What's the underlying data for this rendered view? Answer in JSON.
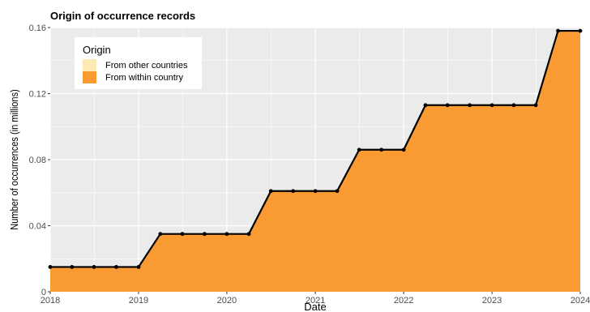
{
  "chart_data": {
    "type": "area",
    "title": "Origin of occurrence records",
    "xlabel": "Date",
    "ylabel": "Number of occurrences (in millions)",
    "xlim": [
      "2018-01-01",
      "2024-01-01"
    ],
    "ylim": [
      0,
      0.16
    ],
    "x_ticks": [
      "2018",
      "2019",
      "2020",
      "2021",
      "2022",
      "2023",
      "2024"
    ],
    "y_ticks": [
      "0",
      "0.04",
      "0.08",
      "0.12",
      "0.16"
    ],
    "y_tick_values": [
      0,
      0.04,
      0.08,
      0.12,
      0.16
    ],
    "grid": true,
    "legend": {
      "title": "Origin",
      "placement": "top-left",
      "entries": [
        {
          "name": "From other countries",
          "color": "#FDE9B3"
        },
        {
          "name": "From within country",
          "color": "#FA9A32"
        }
      ]
    },
    "x": [
      "2018-01-01",
      "2018-04-01",
      "2018-07-01",
      "2018-10-01",
      "2019-01-01",
      "2019-04-01",
      "2019-07-01",
      "2019-10-01",
      "2020-01-01",
      "2020-04-01",
      "2020-07-01",
      "2020-10-01",
      "2021-01-01",
      "2021-04-01",
      "2021-07-01",
      "2021-10-01",
      "2022-01-01",
      "2022-04-01",
      "2022-07-01",
      "2022-10-01",
      "2023-01-01",
      "2023-04-01",
      "2023-07-01",
      "2023-10-01",
      "2024-01-01"
    ],
    "series": [
      {
        "name": "From other countries",
        "color": "#FDE9B3",
        "values": [
          0,
          0,
          0,
          0,
          0,
          0,
          0,
          0,
          0,
          0,
          0,
          0,
          0,
          0,
          0,
          0,
          0,
          0,
          0,
          0,
          0,
          0,
          0,
          0,
          0
        ]
      },
      {
        "name": "From within country",
        "color": "#FA9A32",
        "values": [
          0.015,
          0.015,
          0.015,
          0.015,
          0.015,
          0.035,
          0.035,
          0.035,
          0.035,
          0.035,
          0.061,
          0.061,
          0.061,
          0.061,
          0.086,
          0.086,
          0.086,
          0.113,
          0.113,
          0.113,
          0.113,
          0.113,
          0.113,
          0.158,
          0.158
        ]
      }
    ],
    "colors": {
      "panel": "#EBEBEB",
      "grid": "#FFFFFF",
      "line": "#000000"
    }
  }
}
